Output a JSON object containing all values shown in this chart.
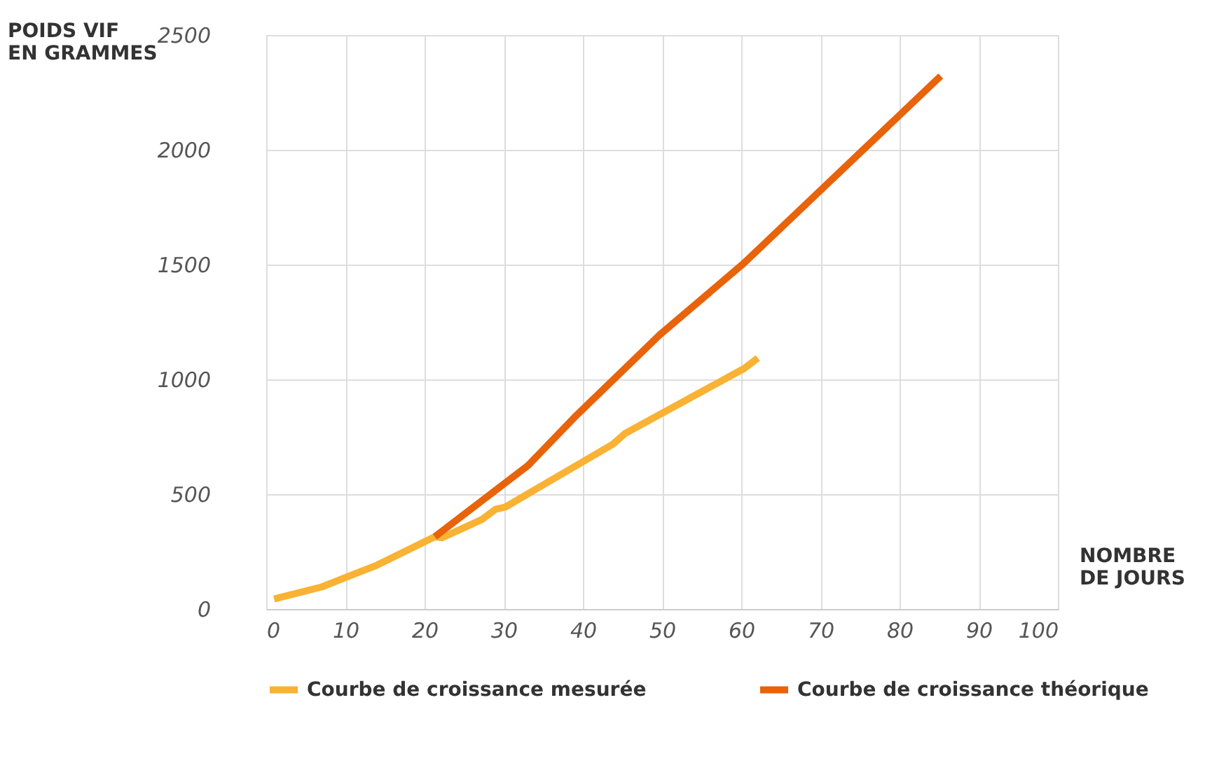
{
  "chart_data": {
    "type": "line",
    "xlabel": "NOMBRE\nDE JOURS",
    "ylabel": "POIDS VIF\nEN GRAMMES",
    "xlim": [
      0,
      100
    ],
    "xticks": [
      0,
      10,
      20,
      30,
      40,
      50,
      60,
      70,
      80,
      90,
      100
    ],
    "ylim": [
      0,
      2500
    ],
    "yticks": [
      0,
      500,
      1000,
      1500,
      2000,
      2500
    ],
    "grid": true,
    "legend": "bottom",
    "marker": "none",
    "line_style": "solid",
    "series": [
      {
        "name": "Courbe de croissance mesurée",
        "color": "#f9b233",
        "x": [
          1,
          7,
          14,
          21.3,
          22.2,
          27.2,
          29,
          30.2,
          43.8,
          45.3,
          60.4,
          62.1
        ],
        "values": [
          44,
          96,
          191,
          315,
          310,
          389,
          435,
          444,
          718,
          764,
          1048,
          1093
        ]
      },
      {
        "name": "Courbe de croissance théorique",
        "color": "#e8630a",
        "x": [
          21.3,
          33.1,
          39,
          42,
          49.7,
          60.3,
          85.2
        ],
        "values": [
          315,
          626,
          837,
          937,
          1194,
          1505,
          2321
        ]
      }
    ]
  }
}
